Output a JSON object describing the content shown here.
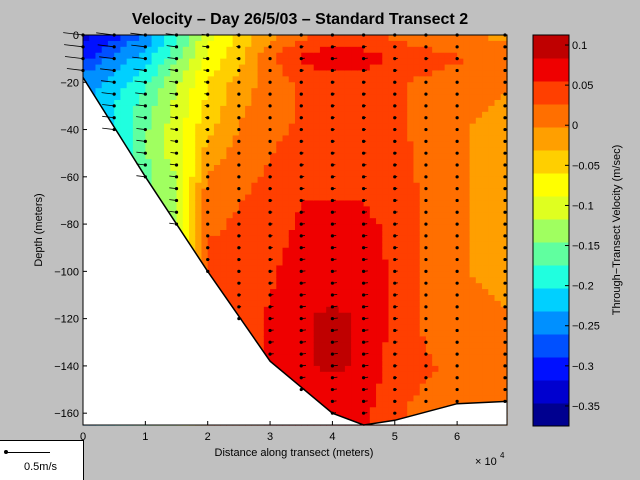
{
  "chart_data": {
    "type": "heatmap",
    "title": "Velocity – Day 26/5/03 – Standard Transect 2",
    "xlabel": "Distance along transect (meters)",
    "ylabel": "Depth (meters)",
    "x_multiplier_label": "× 10",
    "x_multiplier_exponent": "4",
    "xlim": [
      0,
      6.8
    ],
    "ylim": [
      -165,
      0
    ],
    "x_ticks": [
      "0",
      "1",
      "2",
      "3",
      "4",
      "5",
      "6"
    ],
    "y_ticks": [
      "0",
      "−20",
      "−40",
      "−60",
      "−80",
      "−100",
      "−120",
      "−140",
      "−160"
    ],
    "colorbar": {
      "label": "Through−Transect Velocity (m/sec)",
      "range": [
        -0.375,
        0.1125
      ],
      "ticks": [
        "0.1",
        "0.05",
        "0",
        "−0.05",
        "−0.1",
        "−0.15",
        "−0.2",
        "−0.25",
        "−0.3",
        "−0.35"
      ],
      "colors": [
        "#00008f",
        "#0000cf",
        "#0010ff",
        "#0050ff",
        "#0090ff",
        "#00d0ff",
        "#20ffdf",
        "#60ff9f",
        "#a0ff60",
        "#dfff20",
        "#ffff00",
        "#ffcf00",
        "#ff9f00",
        "#ff6f00",
        "#ff3f00",
        "#ef0000",
        "#bf0000"
      ]
    },
    "bottom_profile": [
      [
        0,
        -18
      ],
      [
        1,
        -60
      ],
      [
        2,
        -100
      ],
      [
        3,
        -138
      ],
      [
        4,
        -160
      ],
      [
        4.5,
        -165
      ],
      [
        5,
        -163
      ],
      [
        6,
        -156
      ],
      [
        6.8,
        -155
      ]
    ],
    "velocity_field": [
      {
        "x": 0.0,
        "depths": [
          0,
          -10,
          -18
        ],
        "values": [
          -0.33,
          -0.3,
          -0.25
        ]
      },
      {
        "x": 0.5,
        "depths": [
          0,
          -10,
          -20,
          -30,
          -40
        ],
        "values": [
          -0.3,
          -0.25,
          -0.22,
          -0.2,
          -0.2
        ]
      },
      {
        "x": 1.0,
        "depths": [
          0,
          -10,
          -20,
          -30,
          -40,
          -50,
          -60
        ],
        "values": [
          -0.25,
          -0.22,
          -0.18,
          -0.16,
          -0.15,
          -0.15,
          -0.15
        ]
      },
      {
        "x": 1.5,
        "depths": [
          0,
          -10,
          -20,
          -30,
          -40,
          -50,
          -60,
          -70,
          -80
        ],
        "values": [
          -0.18,
          -0.15,
          -0.12,
          -0.11,
          -0.1,
          -0.1,
          -0.12,
          -0.12,
          -0.12
        ]
      },
      {
        "x": 2.0,
        "depths": [
          0,
          -10,
          -20,
          -30,
          -40,
          -50,
          -60,
          -70,
          -80,
          -90,
          -100
        ],
        "values": [
          -0.1,
          -0.08,
          -0.06,
          -0.05,
          -0.04,
          -0.02,
          0.0,
          0.02,
          0.02,
          0.03,
          0.03
        ]
      },
      {
        "x": 2.5,
        "depths": [
          0,
          -10,
          -20,
          -40,
          -60,
          -80,
          -100,
          -120
        ],
        "values": [
          -0.05,
          -0.04,
          -0.02,
          0.0,
          0.02,
          0.03,
          0.03,
          0.04
        ]
      },
      {
        "x": 3.0,
        "depths": [
          0,
          -10,
          -20,
          -40,
          -60,
          -80,
          -100,
          -120,
          -135
        ],
        "values": [
          -0.01,
          0.02,
          0.01,
          0.02,
          0.03,
          0.04,
          0.05,
          0.06,
          0.06
        ]
      },
      {
        "x": 3.5,
        "depths": [
          0,
          -10,
          -20,
          -40,
          -60,
          -80,
          -100,
          -120,
          -140,
          -150
        ],
        "values": [
          0.02,
          0.06,
          0.03,
          0.03,
          0.05,
          0.06,
          0.07,
          0.08,
          0.08,
          0.06
        ]
      },
      {
        "x": 4.0,
        "depths": [
          0,
          -10,
          -20,
          -40,
          -60,
          -80,
          -100,
          -120,
          -140,
          -160
        ],
        "values": [
          0.03,
          0.08,
          0.04,
          0.04,
          0.05,
          0.06,
          0.07,
          0.09,
          0.09,
          0.06
        ]
      },
      {
        "x": 4.5,
        "depths": [
          0,
          -10,
          -20,
          -40,
          -60,
          -80,
          -100,
          -120,
          -140,
          -163
        ],
        "values": [
          0.03,
          0.07,
          0.04,
          0.04,
          0.05,
          0.06,
          0.07,
          0.08,
          0.08,
          0.06
        ]
      },
      {
        "x": 5.0,
        "depths": [
          0,
          -10,
          -20,
          -40,
          -60,
          -80,
          -100,
          -120,
          -140,
          -160
        ],
        "values": [
          0.02,
          0.05,
          0.03,
          0.03,
          0.04,
          0.05,
          0.05,
          0.05,
          0.04,
          0.03
        ]
      },
      {
        "x": 5.5,
        "depths": [
          0,
          -10,
          -20,
          -40,
          -60,
          -80,
          -100,
          -120,
          -140,
          -158
        ],
        "values": [
          0.01,
          0.04,
          0.02,
          0.02,
          0.02,
          0.02,
          0.02,
          0.02,
          0.03,
          0.02
        ]
      },
      {
        "x": 6.0,
        "depths": [
          0,
          -10,
          -20,
          -40,
          -60,
          -80,
          -100,
          -120,
          -140,
          -155
        ],
        "values": [
          0.0,
          0.03,
          0.01,
          0.0,
          0.0,
          0.0,
          0.0,
          0.01,
          0.02,
          0.02
        ]
      },
      {
        "x": 6.8,
        "depths": [
          0,
          -10,
          -20,
          -40,
          -60,
          -80,
          -100,
          -120,
          -140,
          -155
        ],
        "values": [
          -0.01,
          0.02,
          0.0,
          -0.01,
          -0.01,
          -0.01,
          -0.01,
          0.0,
          0.01,
          0.01
        ]
      }
    ]
  },
  "scale_legend": {
    "label": "0.5m/s"
  }
}
